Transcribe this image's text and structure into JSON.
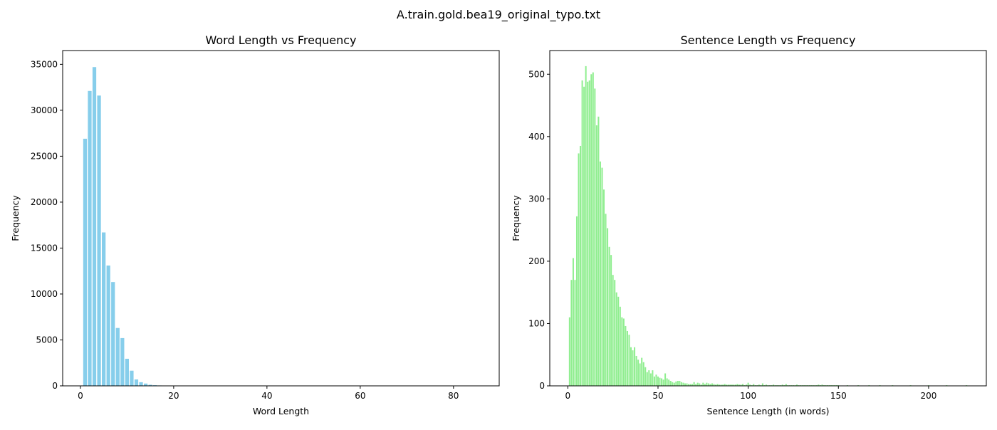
{
  "figure": {
    "suptitle": "A.train.gold.bea19_original_typo.txt"
  },
  "chart_data": [
    {
      "type": "bar",
      "title": "Word Length vs Frequency",
      "xlabel": "Word Length",
      "ylabel": "Frequency",
      "color": "#87ceeb",
      "xlim": [
        -3.8,
        89.8
      ],
      "ylim": [
        0,
        36500
      ],
      "xticks": [
        0,
        20,
        40,
        60,
        80
      ],
      "yticks": [
        0,
        5000,
        10000,
        15000,
        20000,
        25000,
        30000,
        35000
      ],
      "x": [
        1,
        2,
        3,
        4,
        5,
        6,
        7,
        8,
        9,
        10,
        11,
        12,
        13,
        14,
        15,
        16,
        17,
        18,
        19,
        20,
        21,
        22,
        23,
        24,
        25,
        26,
        27,
        28,
        29,
        30,
        31,
        32,
        33,
        34,
        35,
        36,
        37,
        38,
        39,
        40,
        41,
        42,
        43,
        44,
        45,
        46,
        47,
        48,
        49,
        50,
        51,
        52,
        53,
        54,
        55,
        56,
        57,
        58,
        59,
        60,
        61,
        62,
        63,
        64,
        65,
        66,
        67,
        68,
        69,
        70,
        71,
        72,
        73,
        74,
        75,
        76,
        77,
        78,
        79,
        80,
        81,
        82,
        83,
        84,
        85,
        86
      ],
      "values": [
        26900,
        32100,
        34700,
        31600,
        16700,
        13100,
        11300,
        6300,
        5200,
        2950,
        1650,
        700,
        400,
        250,
        120,
        70,
        45,
        30,
        20,
        15,
        10,
        8,
        6,
        5,
        4,
        3,
        3,
        2,
        2,
        2,
        1,
        1,
        1,
        1,
        1,
        1,
        1,
        1,
        1,
        1,
        0,
        0,
        0,
        0,
        0,
        0,
        0,
        0,
        0,
        0,
        0,
        0,
        0,
        0,
        0,
        0,
        0,
        0,
        0,
        0,
        0,
        0,
        0,
        0,
        0,
        0,
        0,
        0,
        0,
        0,
        0,
        0,
        0,
        0,
        0,
        0,
        0,
        0,
        0,
        0,
        0,
        0,
        0,
        0,
        0,
        1
      ]
    },
    {
      "type": "bar",
      "title": "Sentence Length vs Frequency",
      "xlabel": "Sentence Length (in words)",
      "ylabel": "Frequency",
      "color": "#90ee90",
      "xlim": [
        -10,
        232
      ],
      "ylim": [
        0,
        538
      ],
      "xticks": [
        0,
        50,
        100,
        150,
        200
      ],
      "yticks": [
        0,
        100,
        200,
        300,
        400,
        500
      ],
      "x": [
        1,
        2,
        3,
        4,
        5,
        6,
        7,
        8,
        9,
        10,
        11,
        12,
        13,
        14,
        15,
        16,
        17,
        18,
        19,
        20,
        21,
        22,
        23,
        24,
        25,
        26,
        27,
        28,
        29,
        30,
        31,
        32,
        33,
        34,
        35,
        36,
        37,
        38,
        39,
        40,
        41,
        42,
        43,
        44,
        45,
        46,
        47,
        48,
        49,
        50,
        51,
        52,
        53,
        54,
        55,
        56,
        57,
        58,
        59,
        60,
        61,
        62,
        63,
        64,
        65,
        66,
        67,
        68,
        69,
        70,
        71,
        72,
        73,
        74,
        75,
        76,
        77,
        78,
        79,
        80,
        81,
        82,
        83,
        84,
        85,
        86,
        87,
        88,
        89,
        90,
        91,
        92,
        93,
        94,
        95,
        96,
        97,
        98,
        99,
        100,
        101,
        102,
        103,
        104,
        105,
        106,
        107,
        108,
        109,
        110,
        111,
        112,
        113,
        114,
        115,
        116,
        117,
        118,
        119,
        120,
        121,
        122,
        123,
        124,
        125,
        126,
        127,
        128,
        129,
        130,
        131,
        132,
        133,
        134,
        135,
        136,
        137,
        138,
        139,
        140,
        141,
        142,
        143,
        144,
        145,
        146,
        147,
        148,
        149,
        150,
        155,
        161,
        167,
        173,
        180,
        190,
        200,
        210,
        221
      ],
      "values": [
        110,
        170,
        205,
        170,
        272,
        373,
        385,
        490,
        480,
        513,
        488,
        490,
        500,
        503,
        477,
        418,
        432,
        360,
        350,
        315,
        276,
        253,
        223,
        210,
        178,
        170,
        150,
        143,
        127,
        110,
        108,
        96,
        88,
        82,
        62,
        57,
        62,
        48,
        42,
        36,
        45,
        38,
        30,
        22,
        25,
        20,
        25,
        15,
        18,
        15,
        13,
        12,
        10,
        20,
        12,
        10,
        8,
        6,
        5,
        7,
        8,
        8,
        6,
        5,
        4,
        4,
        3,
        3,
        3,
        6,
        3,
        5,
        4,
        2,
        5,
        3,
        5,
        4,
        3,
        4,
        3,
        2,
        3,
        2,
        2,
        2,
        3,
        2,
        2,
        2,
        2,
        2,
        2,
        3,
        2,
        2,
        3,
        1,
        2,
        5,
        2,
        1,
        3,
        1,
        1,
        2,
        1,
        4,
        1,
        2,
        1,
        1,
        1,
        2,
        1,
        1,
        1,
        1,
        2,
        1,
        3,
        1,
        1,
        1,
        1,
        1,
        2,
        1,
        1,
        1,
        1,
        1,
        1,
        1,
        1,
        1,
        1,
        1,
        2,
        1,
        2,
        1,
        1,
        1,
        1,
        1,
        1,
        1,
        1,
        1,
        1,
        1,
        1,
        1,
        1,
        1,
        1,
        1,
        1
      ]
    }
  ]
}
